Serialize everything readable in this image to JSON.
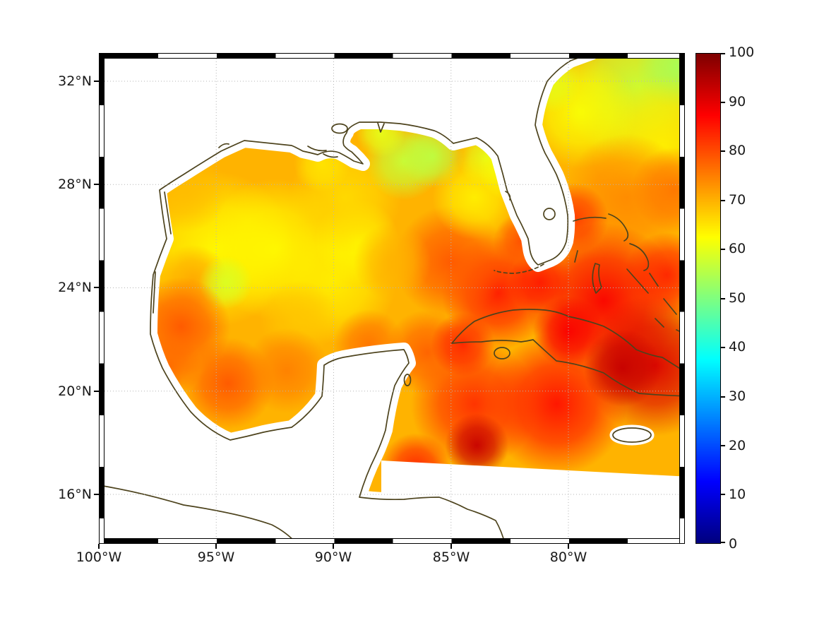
{
  "axes": {
    "lat_ticks": [
      "32°N",
      "28°N",
      "24°N",
      "20°N",
      "16°N"
    ],
    "lon_ticks": [
      "100°W",
      "95°W",
      "90°W",
      "85°W",
      "80°W"
    ]
  },
  "colorbar": {
    "ticks": [
      "0",
      "10",
      "20",
      "30",
      "40",
      "50",
      "60",
      "70",
      "80",
      "90",
      "100"
    ],
    "min": 0,
    "max": 100,
    "colormap": "jet",
    "orientation": "vertical",
    "position": "right"
  },
  "chart_data": {
    "type": "heatmap",
    "title": "",
    "xlabel": "",
    "ylabel": "",
    "extent": {
      "lon_min": -100,
      "lon_max": -75,
      "lat_min": 14.1,
      "lat_max": 33.1
    },
    "grid": "dotted graticule, meridians every 5 deg, parallels every 4 deg",
    "colormap": "jet",
    "colorbar_range": [
      0,
      100
    ],
    "base_value": 70,
    "sample_format": [
      "lon_deg_east",
      "lat_deg_north",
      "value",
      "radius_px"
    ],
    "field_samples": [
      [
        -77.0,
        31.8,
        57,
        110
      ],
      [
        -75.3,
        32.6,
        54,
        60
      ],
      [
        -76.0,
        29.5,
        64,
        100
      ],
      [
        -79.5,
        30.8,
        62,
        80
      ],
      [
        -80.8,
        32.0,
        60,
        45
      ],
      [
        -77.5,
        27.5,
        74,
        90
      ],
      [
        -75.5,
        27.8,
        76,
        60
      ],
      [
        -79.8,
        26.7,
        82,
        50
      ],
      [
        -78.5,
        23.5,
        88,
        110
      ],
      [
        -76.3,
        21.0,
        91,
        100
      ],
      [
        -75.8,
        24.5,
        84,
        60
      ],
      [
        -80.5,
        19.5,
        86,
        100
      ],
      [
        -84.0,
        19.5,
        83,
        90
      ],
      [
        -83.0,
        23.8,
        85,
        80
      ],
      [
        -81.2,
        24.2,
        85,
        45
      ],
      [
        -82.0,
        25.8,
        80,
        40
      ],
      [
        -85.0,
        25.0,
        79,
        80
      ],
      [
        -86.0,
        21.5,
        78,
        60
      ],
      [
        -84.5,
        21.8,
        84,
        45
      ],
      [
        -80.0,
        22.3,
        88,
        50
      ],
      [
        -77.7,
        20.9,
        93,
        55
      ],
      [
        -86.5,
        17.0,
        84,
        50
      ],
      [
        -83.9,
        17.9,
        93,
        45
      ],
      [
        -95.0,
        25.5,
        63,
        110
      ],
      [
        -92.5,
        25.5,
        63,
        100
      ],
      [
        -90.0,
        24.3,
        64,
        90
      ],
      [
        -89.0,
        25.8,
        63,
        60
      ],
      [
        -89.5,
        27.5,
        66,
        80
      ],
      [
        -87.5,
        25.0,
        70,
        55
      ],
      [
        -91.5,
        22.8,
        68,
        55
      ],
      [
        -87.0,
        28.9,
        57,
        55
      ],
      [
        -85.8,
        29.1,
        56,
        45
      ],
      [
        -83.5,
        29.0,
        60,
        40
      ],
      [
        -84.0,
        27.5,
        64,
        60
      ],
      [
        -82.5,
        28.6,
        62,
        45
      ],
      [
        -88.0,
        30.0,
        60,
        35
      ],
      [
        -90.5,
        28.8,
        65,
        40
      ],
      [
        -96.3,
        27.8,
        69,
        60
      ],
      [
        -96.0,
        24.3,
        71,
        50
      ],
      [
        -94.6,
        24.2,
        59,
        38
      ],
      [
        -96.5,
        22.5,
        79,
        70
      ],
      [
        -97.0,
        21.0,
        77,
        45
      ],
      [
        -94.5,
        20.3,
        79,
        65
      ],
      [
        -92.0,
        20.8,
        75,
        60
      ],
      [
        -88.5,
        21.8,
        76,
        50
      ]
    ],
    "no_data_mask": "land areas and region south of line from (-87.7,17.4) to (-75.0,16.7)"
  }
}
